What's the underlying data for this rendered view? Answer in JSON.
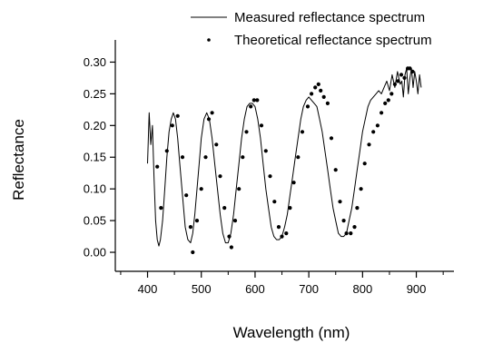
{
  "chart_data": {
    "type": "line",
    "xlabel": "Wavelength (nm)",
    "ylabel": "Reflectance",
    "xlim": [
      340,
      970
    ],
    "ylim": [
      -0.03,
      0.335
    ],
    "x_ticks": [
      400,
      500,
      600,
      700,
      800,
      900
    ],
    "x_tick_labels": [
      "400",
      "500",
      "600",
      "700",
      "800",
      "900"
    ],
    "x_minor_ticks": [
      350,
      450,
      550,
      650,
      750,
      850,
      950
    ],
    "y_ticks": [
      0.0,
      0.05,
      0.1,
      0.15,
      0.2,
      0.25,
      0.3
    ],
    "y_tick_labels": [
      "0.00",
      "0.05",
      "0.10",
      "0.15",
      "0.20",
      "0.25",
      "0.30"
    ],
    "grid": false,
    "legend_position": "top-right",
    "series": [
      {
        "name": "Measured reflectance spectrum",
        "style": "line",
        "color": "#000000",
        "x": [
          400,
          403,
          406,
          409,
          412,
          415,
          418,
          421,
          424,
          428,
          432,
          436,
          440,
          444,
          448,
          452,
          456,
          460,
          465,
          470,
          475,
          480,
          484,
          488,
          492,
          496,
          500,
          505,
          510,
          515,
          520,
          525,
          530,
          535,
          540,
          545,
          550,
          555,
          560,
          565,
          570,
          575,
          580,
          585,
          590,
          595,
          600,
          605,
          610,
          615,
          620,
          625,
          630,
          635,
          640,
          645,
          650,
          655,
          660,
          665,
          670,
          675,
          680,
          685,
          690,
          695,
          700,
          705,
          710,
          715,
          720,
          725,
          730,
          735,
          740,
          745,
          750,
          755,
          760,
          765,
          770,
          775,
          780,
          785,
          790,
          795,
          800,
          805,
          810,
          815,
          820,
          825,
          830,
          835,
          840,
          845,
          850,
          855,
          860,
          865,
          870,
          873,
          876,
          879,
          882,
          885,
          888,
          891,
          894,
          897,
          900,
          903,
          906,
          909
        ],
        "y": [
          0.14,
          0.22,
          0.17,
          0.2,
          0.12,
          0.05,
          0.02,
          0.01,
          0.02,
          0.05,
          0.1,
          0.15,
          0.19,
          0.21,
          0.22,
          0.21,
          0.18,
          0.14,
          0.09,
          0.04,
          0.02,
          0.015,
          0.03,
          0.06,
          0.1,
          0.14,
          0.18,
          0.21,
          0.22,
          0.21,
          0.18,
          0.14,
          0.1,
          0.06,
          0.03,
          0.015,
          0.015,
          0.03,
          0.06,
          0.1,
          0.14,
          0.18,
          0.21,
          0.23,
          0.235,
          0.235,
          0.23,
          0.21,
          0.18,
          0.14,
          0.1,
          0.07,
          0.04,
          0.025,
          0.02,
          0.02,
          0.025,
          0.04,
          0.06,
          0.09,
          0.12,
          0.15,
          0.18,
          0.21,
          0.23,
          0.24,
          0.245,
          0.24,
          0.235,
          0.23,
          0.21,
          0.19,
          0.16,
          0.13,
          0.1,
          0.07,
          0.05,
          0.03,
          0.025,
          0.025,
          0.03,
          0.05,
          0.07,
          0.1,
          0.13,
          0.16,
          0.19,
          0.21,
          0.23,
          0.24,
          0.245,
          0.25,
          0.255,
          0.25,
          0.26,
          0.27,
          0.255,
          0.28,
          0.26,
          0.285,
          0.265,
          0.27,
          0.245,
          0.28,
          0.29,
          0.25,
          0.275,
          0.29,
          0.26,
          0.285,
          0.27,
          0.25,
          0.28,
          0.26
        ]
      },
      {
        "name": "Theoretical reflectance spectrum",
        "style": "points",
        "color": "#000000",
        "x": [
          418,
          425,
          436,
          446,
          456,
          465,
          472,
          480,
          484,
          492,
          500,
          508,
          514,
          520,
          528,
          535,
          543,
          552,
          556,
          563,
          570,
          577,
          584,
          592,
          598,
          604,
          612,
          620,
          628,
          636,
          644,
          650,
          658,
          665,
          672,
          680,
          688,
          698,
          705,
          712,
          718,
          722,
          728,
          735,
          742,
          750,
          758,
          765,
          770,
          778,
          785,
          790,
          797,
          804,
          812,
          820,
          828,
          835,
          842,
          848,
          854,
          860,
          866,
          872,
          878,
          884,
          888,
          893
        ],
        "y": [
          0.135,
          0.07,
          0.16,
          0.2,
          0.215,
          0.15,
          0.09,
          0.04,
          0.0,
          0.05,
          0.1,
          0.15,
          0.21,
          0.22,
          0.17,
          0.12,
          0.07,
          0.025,
          0.008,
          0.05,
          0.1,
          0.15,
          0.19,
          0.23,
          0.24,
          0.24,
          0.2,
          0.16,
          0.12,
          0.08,
          0.04,
          0.025,
          0.03,
          0.07,
          0.11,
          0.15,
          0.19,
          0.23,
          0.25,
          0.26,
          0.265,
          0.255,
          0.245,
          0.235,
          0.18,
          0.13,
          0.08,
          0.05,
          0.03,
          0.03,
          0.04,
          0.07,
          0.1,
          0.14,
          0.17,
          0.19,
          0.2,
          0.22,
          0.235,
          0.24,
          0.25,
          0.265,
          0.27,
          0.28,
          0.275,
          0.29,
          0.29,
          0.285
        ]
      }
    ]
  }
}
